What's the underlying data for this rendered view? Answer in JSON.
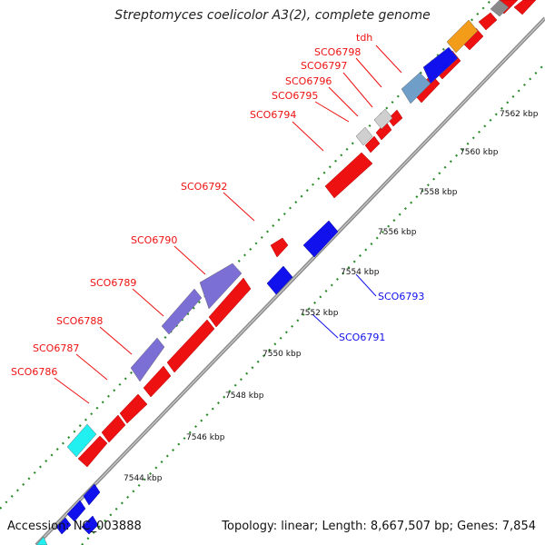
{
  "title": "Streptomyces coelicolor A3(2), complete genome",
  "footer": {
    "accession": "Accession: NC_003888",
    "summary": "Topology: linear; Length: 8,667,507 bp; Genes: 7,854"
  },
  "colors": {
    "red": "#ee1111",
    "blue": "#1111ee",
    "purple": "#7b6fd6",
    "cyan": "#22f0f0",
    "orange": "#f39c1a",
    "grey": "#8a8a8a",
    "lightgrey": "#cfcfcf",
    "steelblue": "#6f9fc8",
    "dots": "#2a8a2a",
    "backbone": "#8a8a8a"
  },
  "scale_ticks": [
    "7544 kbp",
    "7546 kbp",
    "7548 kbp",
    "7550 kbp",
    "7552 kbp",
    "7554 kbp",
    "7556 kbp",
    "7558 kbp",
    "7560 kbp",
    "7562 kbp"
  ],
  "labels_top": [
    "SCO6786",
    "SCO6787",
    "SCO6788",
    "SCO6789",
    "SCO6790",
    "SCO6792",
    "SCO6794",
    "SCO6795",
    "SCO6796",
    "SCO6797",
    "SCO6798",
    "tdh"
  ],
  "labels_bottom": [
    "SCO6791",
    "SCO6793"
  ]
}
